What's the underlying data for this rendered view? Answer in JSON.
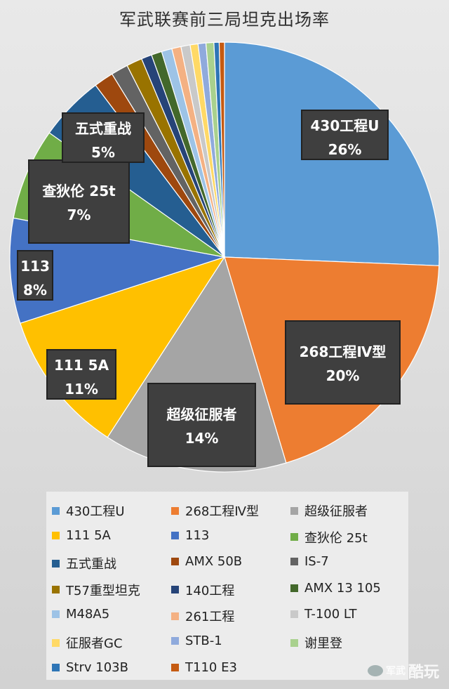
{
  "chart_data": {
    "type": "pie",
    "title": "军武联赛前三局坦克出场率",
    "slices": [
      {
        "label": "430工程U",
        "value": 26,
        "percent_label": "26%",
        "color": "#5b9bd5"
      },
      {
        "label": "268工程Ⅳ型",
        "value": 20,
        "percent_label": "20%",
        "color": "#ed7d31"
      },
      {
        "label": "超级征服者",
        "value": 14,
        "percent_label": "14%",
        "color": "#a5a5a5"
      },
      {
        "label": "111 5A",
        "value": 11,
        "percent_label": "11%",
        "color": "#ffc000"
      },
      {
        "label": "113",
        "value": 8,
        "percent_label": "8%",
        "color": "#4472c4"
      },
      {
        "label": "查狄伦 25t",
        "value": 7,
        "percent_label": "7%",
        "color": "#70ad47"
      },
      {
        "label": "五式重战",
        "value": 5,
        "percent_label": "5%",
        "color": "#255e91"
      },
      {
        "label": "AMX 50B",
        "value": 1.5,
        "color": "#9e480e"
      },
      {
        "label": "IS-7",
        "value": 1.3,
        "color": "#636363"
      },
      {
        "label": "T57重型坦克",
        "value": 1.2,
        "color": "#997300"
      },
      {
        "label": "140工程",
        "value": 0.8,
        "color": "#264478"
      },
      {
        "label": "AMX 13 105",
        "value": 0.8,
        "color": "#43682b"
      },
      {
        "label": "M48A5",
        "value": 0.8,
        "color": "#9dc3e6"
      },
      {
        "label": "261工程",
        "value": 0.7,
        "color": "#f4b183"
      },
      {
        "label": "T-100 LT",
        "value": 0.7,
        "color": "#c9c9c9"
      },
      {
        "label": "征服者GC",
        "value": 0.6,
        "color": "#ffd966"
      },
      {
        "label": "STB-1",
        "value": 0.6,
        "color": "#8faadc"
      },
      {
        "label": "谢里登",
        "value": 0.6,
        "color": "#a9d18e"
      },
      {
        "label": "Strv 103B",
        "value": 0.4,
        "color": "#2e75b6"
      },
      {
        "label": "T110 E3",
        "value": 0.4,
        "color": "#c55a11"
      }
    ],
    "legend_position": "bottom"
  },
  "watermark": {
    "small": "军武",
    "big": "酷玩"
  }
}
